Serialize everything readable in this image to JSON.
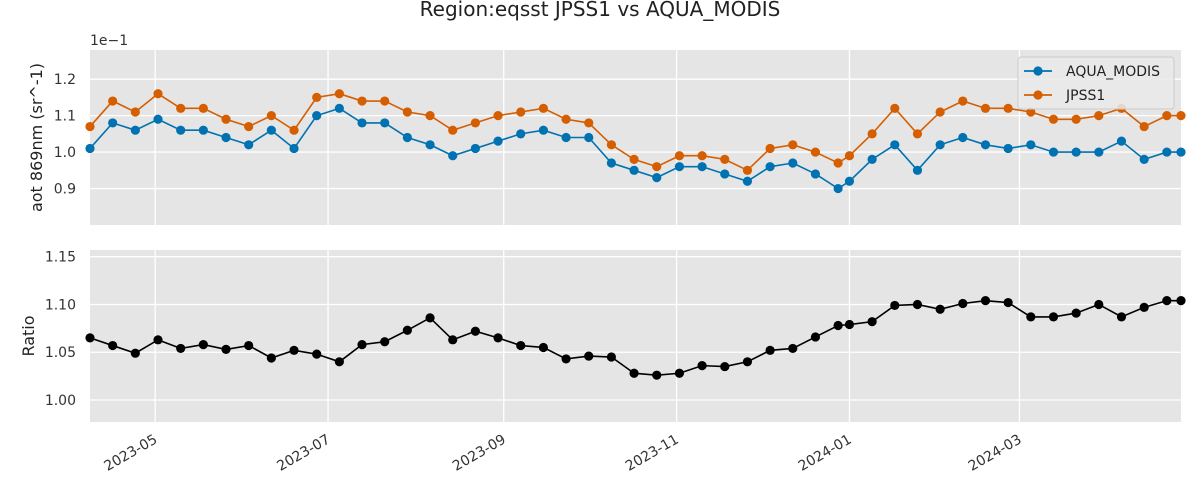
{
  "chart_data": {
    "title": "Region:eqsst JPSS1 vs AQUA_MODIS",
    "type": "line",
    "x_tick_labels": [
      "2023-05",
      "2023-07",
      "2023-09",
      "2023-11",
      "2024-01",
      "2024-03"
    ],
    "x_tick_dates": [
      "2023-05-01",
      "2023-07-01",
      "2023-09-01",
      "2023-11-01",
      "2024-01-01",
      "2024-03-01"
    ],
    "x_range": [
      "2023-04-08",
      "2024-04-27"
    ],
    "x": [
      "2023-04-08",
      "2023-04-16",
      "2023-04-24",
      "2023-05-02",
      "2023-05-10",
      "2023-05-18",
      "2023-05-26",
      "2023-06-03",
      "2023-06-11",
      "2023-06-19",
      "2023-06-27",
      "2023-07-05",
      "2023-07-13",
      "2023-07-21",
      "2023-07-29",
      "2023-08-06",
      "2023-08-14",
      "2023-08-22",
      "2023-08-30",
      "2023-09-07",
      "2023-09-15",
      "2023-09-23",
      "2023-10-01",
      "2023-10-09",
      "2023-10-17",
      "2023-10-25",
      "2023-11-02",
      "2023-11-10",
      "2023-11-18",
      "2023-11-26",
      "2023-12-04",
      "2023-12-12",
      "2023-12-20",
      "2023-12-28",
      "2024-01-01",
      "2024-01-09",
      "2024-01-17",
      "2024-01-25",
      "2024-02-02",
      "2024-02-10",
      "2024-02-18",
      "2024-02-26",
      "2024-03-05",
      "2024-03-13",
      "2024-03-21",
      "2024-03-29",
      "2024-04-06",
      "2024-04-14",
      "2024-04-22",
      "2024-04-27"
    ],
    "panels": [
      {
        "ylabel": "aot 869nm (sr^-1)",
        "offset_text": "1e−1",
        "ylim": [
          0.8,
          1.28
        ],
        "y_ticks": [
          0.9,
          1.0,
          1.1,
          1.2
        ],
        "y_tick_labels": [
          "0.9",
          "1.0",
          "1.1",
          "1.2"
        ],
        "legend_position": "top-right",
        "series": [
          {
            "name": "AQUA_MODIS",
            "color": "#0072B2",
            "values": [
              1.01,
              1.08,
              1.06,
              1.09,
              1.06,
              1.06,
              1.04,
              1.02,
              1.06,
              1.01,
              1.1,
              1.12,
              1.08,
              1.08,
              1.04,
              1.02,
              0.99,
              1.01,
              1.03,
              1.05,
              1.06,
              1.04,
              1.04,
              0.97,
              0.95,
              0.93,
              0.96,
              0.96,
              0.94,
              0.92,
              0.96,
              0.97,
              0.94,
              0.9,
              0.92,
              0.98,
              1.02,
              0.95,
              1.02,
              1.04,
              1.02,
              1.01,
              1.02,
              1.0,
              1.0,
              1.0,
              1.03,
              0.98,
              1.0,
              1.0
            ]
          },
          {
            "name": "JPSS1",
            "color": "#D55E00",
            "values": [
              1.07,
              1.14,
              1.11,
              1.16,
              1.12,
              1.12,
              1.09,
              1.07,
              1.1,
              1.06,
              1.15,
              1.16,
              1.14,
              1.14,
              1.11,
              1.1,
              1.06,
              1.08,
              1.1,
              1.11,
              1.12,
              1.09,
              1.08,
              1.02,
              0.98,
              0.96,
              0.99,
              0.99,
              0.98,
              0.95,
              1.01,
              1.02,
              1.0,
              0.97,
              0.99,
              1.05,
              1.12,
              1.05,
              1.11,
              1.14,
              1.12,
              1.12,
              1.11,
              1.09,
              1.09,
              1.1,
              1.12,
              1.07,
              1.1,
              1.1
            ]
          }
        ]
      },
      {
        "ylabel": "Ratio",
        "ylim": [
          0.977,
          1.157
        ],
        "y_ticks": [
          1.0,
          1.05,
          1.1,
          1.15
        ],
        "y_tick_labels": [
          "1.00",
          "1.05",
          "1.10",
          "1.15"
        ],
        "series": [
          {
            "color": "#000000",
            "values": [
              1.065,
              1.057,
              1.049,
              1.063,
              1.054,
              1.058,
              1.053,
              1.057,
              1.044,
              1.052,
              1.048,
              1.04,
              1.058,
              1.061,
              1.073,
              1.086,
              1.063,
              1.072,
              1.065,
              1.057,
              1.055,
              1.043,
              1.046,
              1.045,
              1.028,
              1.026,
              1.028,
              1.036,
              1.035,
              1.04,
              1.052,
              1.054,
              1.066,
              1.078,
              1.079,
              1.082,
              1.099,
              1.1,
              1.095,
              1.101,
              1.104,
              1.102,
              1.087,
              1.087,
              1.091,
              1.1,
              1.087,
              1.097,
              1.104,
              1.104
            ]
          }
        ]
      }
    ]
  }
}
